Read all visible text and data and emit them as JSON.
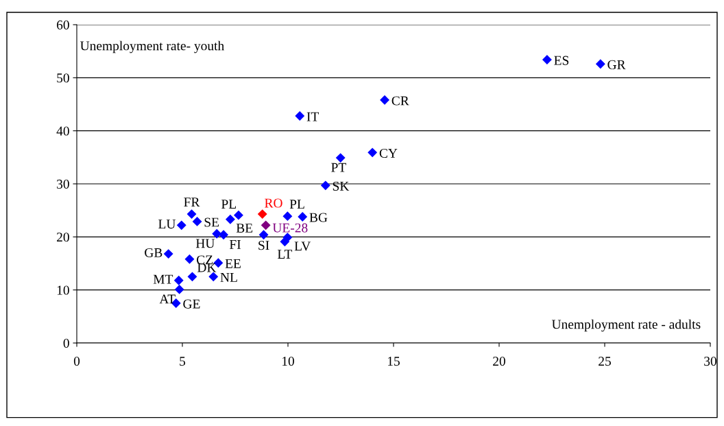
{
  "chart_data": {
    "type": "scatter",
    "xlabel": "Unemployment rate - adults",
    "ylabel": "Unemployment rate- youth",
    "xlim": [
      0,
      30
    ],
    "xticks": [
      0,
      5,
      10,
      15,
      20,
      25,
      30
    ],
    "ylim": [
      0,
      60
    ],
    "yticks": [
      0,
      10,
      20,
      30,
      40,
      50,
      60
    ],
    "grid": "y",
    "marker": "diamond",
    "series": [
      {
        "color": "#0000ff",
        "x": [
          22.27,
          24.8,
          14.58,
          10.56,
          14.0,
          12.49,
          11.78,
          7.66,
          9.98,
          10.69,
          5.44,
          5.7,
          4.96,
          7.27,
          6.63,
          6.95,
          8.85,
          9.98,
          9.85,
          4.34,
          5.34,
          6.7,
          5.47,
          6.47,
          4.83,
          4.86,
          4.7
        ],
        "values": [
          53.4,
          52.6,
          45.8,
          42.8,
          35.9,
          34.9,
          29.7,
          24.1,
          23.9,
          23.8,
          24.3,
          22.9,
          22.2,
          23.3,
          20.6,
          20.4,
          20.4,
          19.9,
          19.1,
          16.8,
          15.8,
          15.1,
          12.5,
          12.5,
          11.8,
          10.1,
          7.5
        ],
        "value_labels": [
          "ES",
          "GR",
          "CR",
          "IT",
          "CY",
          "PT",
          "SK",
          "PL",
          "PL",
          "BG",
          "FR",
          "SE",
          "LU",
          "BE",
          "HU",
          "FI",
          "SI",
          "LV",
          "LT",
          "GB",
          "CZ",
          "EE",
          "DK",
          "NL",
          "MT",
          "AT",
          "GE"
        ]
      },
      {
        "name": "RO",
        "color": "#ff0000",
        "x": [
          8.79
        ],
        "values": [
          24.3
        ]
      },
      {
        "name": "UE-28",
        "color": "#800080",
        "x": [
          8.95
        ],
        "values": [
          22.2
        ]
      }
    ]
  }
}
